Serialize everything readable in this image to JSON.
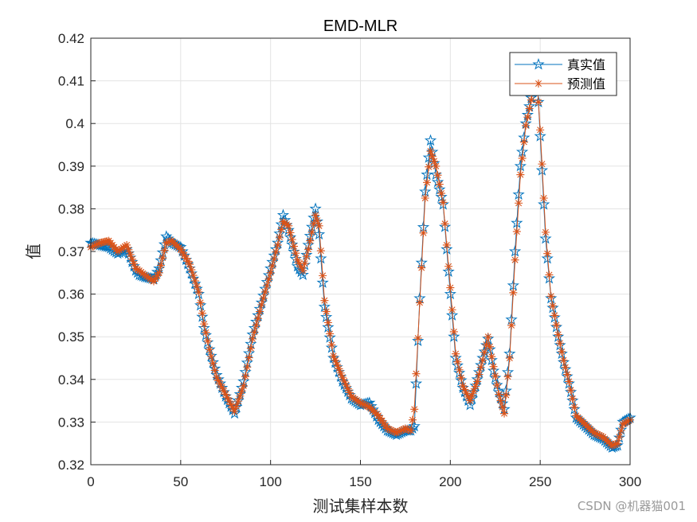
{
  "chart_data": {
    "type": "line",
    "title": "EMD-MLR",
    "xlabel": "测试集样本数",
    "ylabel": "值",
    "xlim": [
      0,
      300
    ],
    "ylim": [
      0.32,
      0.42
    ],
    "xticks": [
      0,
      50,
      100,
      150,
      200,
      250,
      300
    ],
    "yticks": [
      0.32,
      0.33,
      0.34,
      0.35,
      0.36,
      0.37,
      0.38,
      0.39,
      0.4,
      0.41,
      0.42
    ],
    "xtick_labels": [
      "0",
      "50",
      "100",
      "150",
      "200",
      "250",
      "300"
    ],
    "ytick_labels": [
      "0.32",
      "0.33",
      "0.34",
      "0.35",
      "0.36",
      "0.37",
      "0.38",
      "0.39",
      "0.4",
      "0.41",
      "0.42"
    ],
    "grid": true,
    "legend_position": "top-right",
    "x": [
      0,
      5,
      10,
      15,
      20,
      25,
      27,
      30,
      35,
      38,
      42,
      45,
      50,
      55,
      60,
      63,
      66,
      70,
      75,
      80,
      85,
      90,
      95,
      100,
      104,
      107,
      110,
      115,
      118,
      121,
      125,
      127,
      130,
      135,
      140,
      145,
      150,
      155,
      160,
      165,
      170,
      175,
      178,
      180,
      183,
      186,
      189,
      192,
      196,
      200,
      203,
      207,
      211,
      215,
      218,
      221,
      224,
      227,
      230,
      233,
      236,
      239,
      242,
      245,
      248,
      250,
      253,
      256,
      260,
      263,
      266,
      270,
      275,
      280,
      285,
      290,
      293,
      296,
      300
    ],
    "series": [
      {
        "name": "真实值",
        "color": "#0072BD",
        "marker": "pentagram",
        "values": [
          0.372,
          0.3715,
          0.371,
          0.3695,
          0.3705,
          0.3655,
          0.3645,
          0.364,
          0.3635,
          0.366,
          0.3735,
          0.372,
          0.371,
          0.366,
          0.36,
          0.352,
          0.347,
          0.341,
          0.336,
          0.332,
          0.3395,
          0.3505,
          0.358,
          0.366,
          0.372,
          0.3785,
          0.375,
          0.3665,
          0.3645,
          0.3715,
          0.38,
          0.374,
          0.357,
          0.345,
          0.3395,
          0.3355,
          0.334,
          0.3345,
          0.3305,
          0.328,
          0.327,
          0.328,
          0.328,
          0.329,
          0.359,
          0.384,
          0.396,
          0.388,
          0.381,
          0.36,
          0.345,
          0.338,
          0.334,
          0.34,
          0.345,
          0.3495,
          0.342,
          0.337,
          0.333,
          0.346,
          0.37,
          0.39,
          0.4,
          0.406,
          0.413,
          0.397,
          0.373,
          0.359,
          0.35,
          0.344,
          0.339,
          0.331,
          0.329,
          0.327,
          0.326,
          0.324,
          0.3245,
          0.33,
          0.331
        ]
      },
      {
        "name": "预测值",
        "color": "#D95319",
        "marker": "asterisk",
        "values": [
          0.371,
          0.372,
          0.3725,
          0.37,
          0.3715,
          0.366,
          0.3655,
          0.3645,
          0.363,
          0.365,
          0.372,
          0.3725,
          0.3705,
          0.367,
          0.3605,
          0.353,
          0.347,
          0.3405,
          0.3365,
          0.3325,
          0.3385,
          0.3495,
          0.3575,
          0.365,
          0.3715,
          0.377,
          0.376,
          0.368,
          0.3655,
          0.3705,
          0.3785,
          0.376,
          0.3585,
          0.3455,
          0.3405,
          0.336,
          0.3345,
          0.3335,
          0.3315,
          0.3285,
          0.3275,
          0.3285,
          0.328,
          0.333,
          0.358,
          0.3825,
          0.3935,
          0.39,
          0.3815,
          0.3615,
          0.346,
          0.3385,
          0.335,
          0.3395,
          0.3445,
          0.35,
          0.343,
          0.3365,
          0.332,
          0.345,
          0.368,
          0.388,
          0.3995,
          0.4055,
          0.4115,
          0.3985,
          0.3745,
          0.3595,
          0.3505,
          0.3445,
          0.3395,
          0.3315,
          0.3295,
          0.3275,
          0.3265,
          0.3245,
          0.325,
          0.3295,
          0.3305
        ]
      }
    ]
  },
  "watermark": "CSDN @机器猫001"
}
